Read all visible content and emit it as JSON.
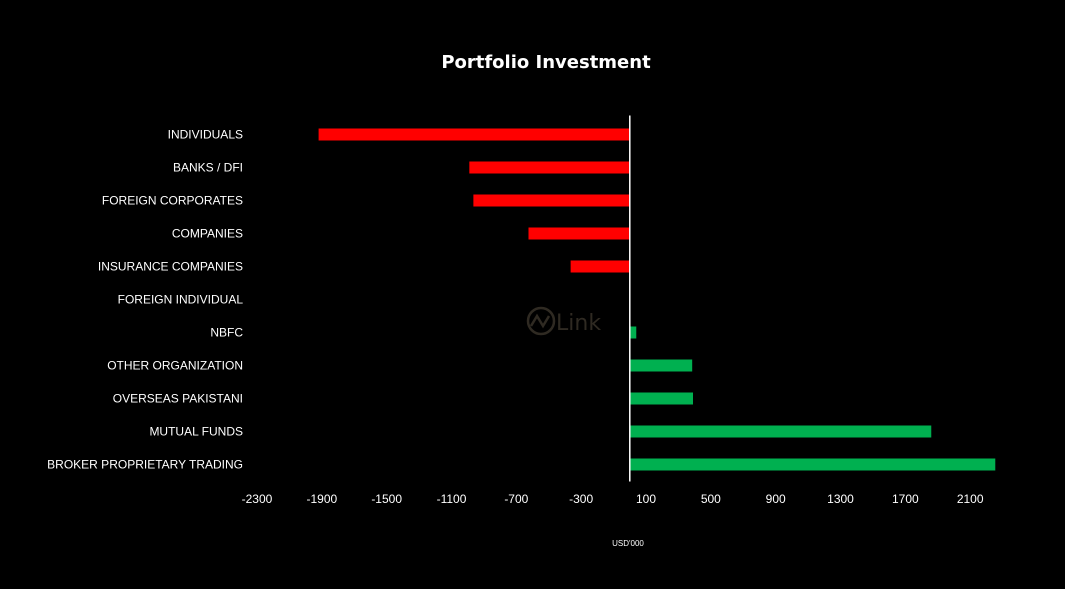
{
  "watermark": {
    "text": "Link",
    "color": "#2f2a22"
  },
  "chart_data": {
    "type": "bar",
    "orientation": "horizontal",
    "title": "Portfolio Investment",
    "xlabel": "USD'000",
    "ylabel": "",
    "categories": [
      "INDIVIDUALS",
      "BANKS / DFI",
      "FOREIGN CORPORATES ",
      "COMPANIES",
      "INSURANCE COMPANIES",
      "FOREIGN INDIVIDUAL",
      "NBFC",
      "OTHER ORGANIZATION",
      "OVERSEAS PAKISTANI",
      "MUTUAL FUNDS",
      "BROKER PROPRIETARY TRADING"
    ],
    "values": [
      -1920,
      -990,
      -965,
      -625,
      -365,
      0,
      40,
      385,
      390,
      1860,
      2255
    ],
    "xlim": [
      -2300,
      2500
    ],
    "xticks": [
      -2300,
      -1900,
      -1500,
      -1100,
      -700,
      -300,
      100,
      500,
      900,
      1300,
      1700,
      2100
    ],
    "xtick_labels": [
      "-2300",
      "-1900",
      "-1500",
      "-1100",
      "-700",
      "-300",
      "100",
      "500",
      "900",
      "1300",
      "1700",
      "2100"
    ],
    "grid": false,
    "legend": "none",
    "colors": {
      "negative": "#ff0000",
      "positive": "#00b050",
      "axis": "#ffffff",
      "background": "#000000"
    }
  }
}
